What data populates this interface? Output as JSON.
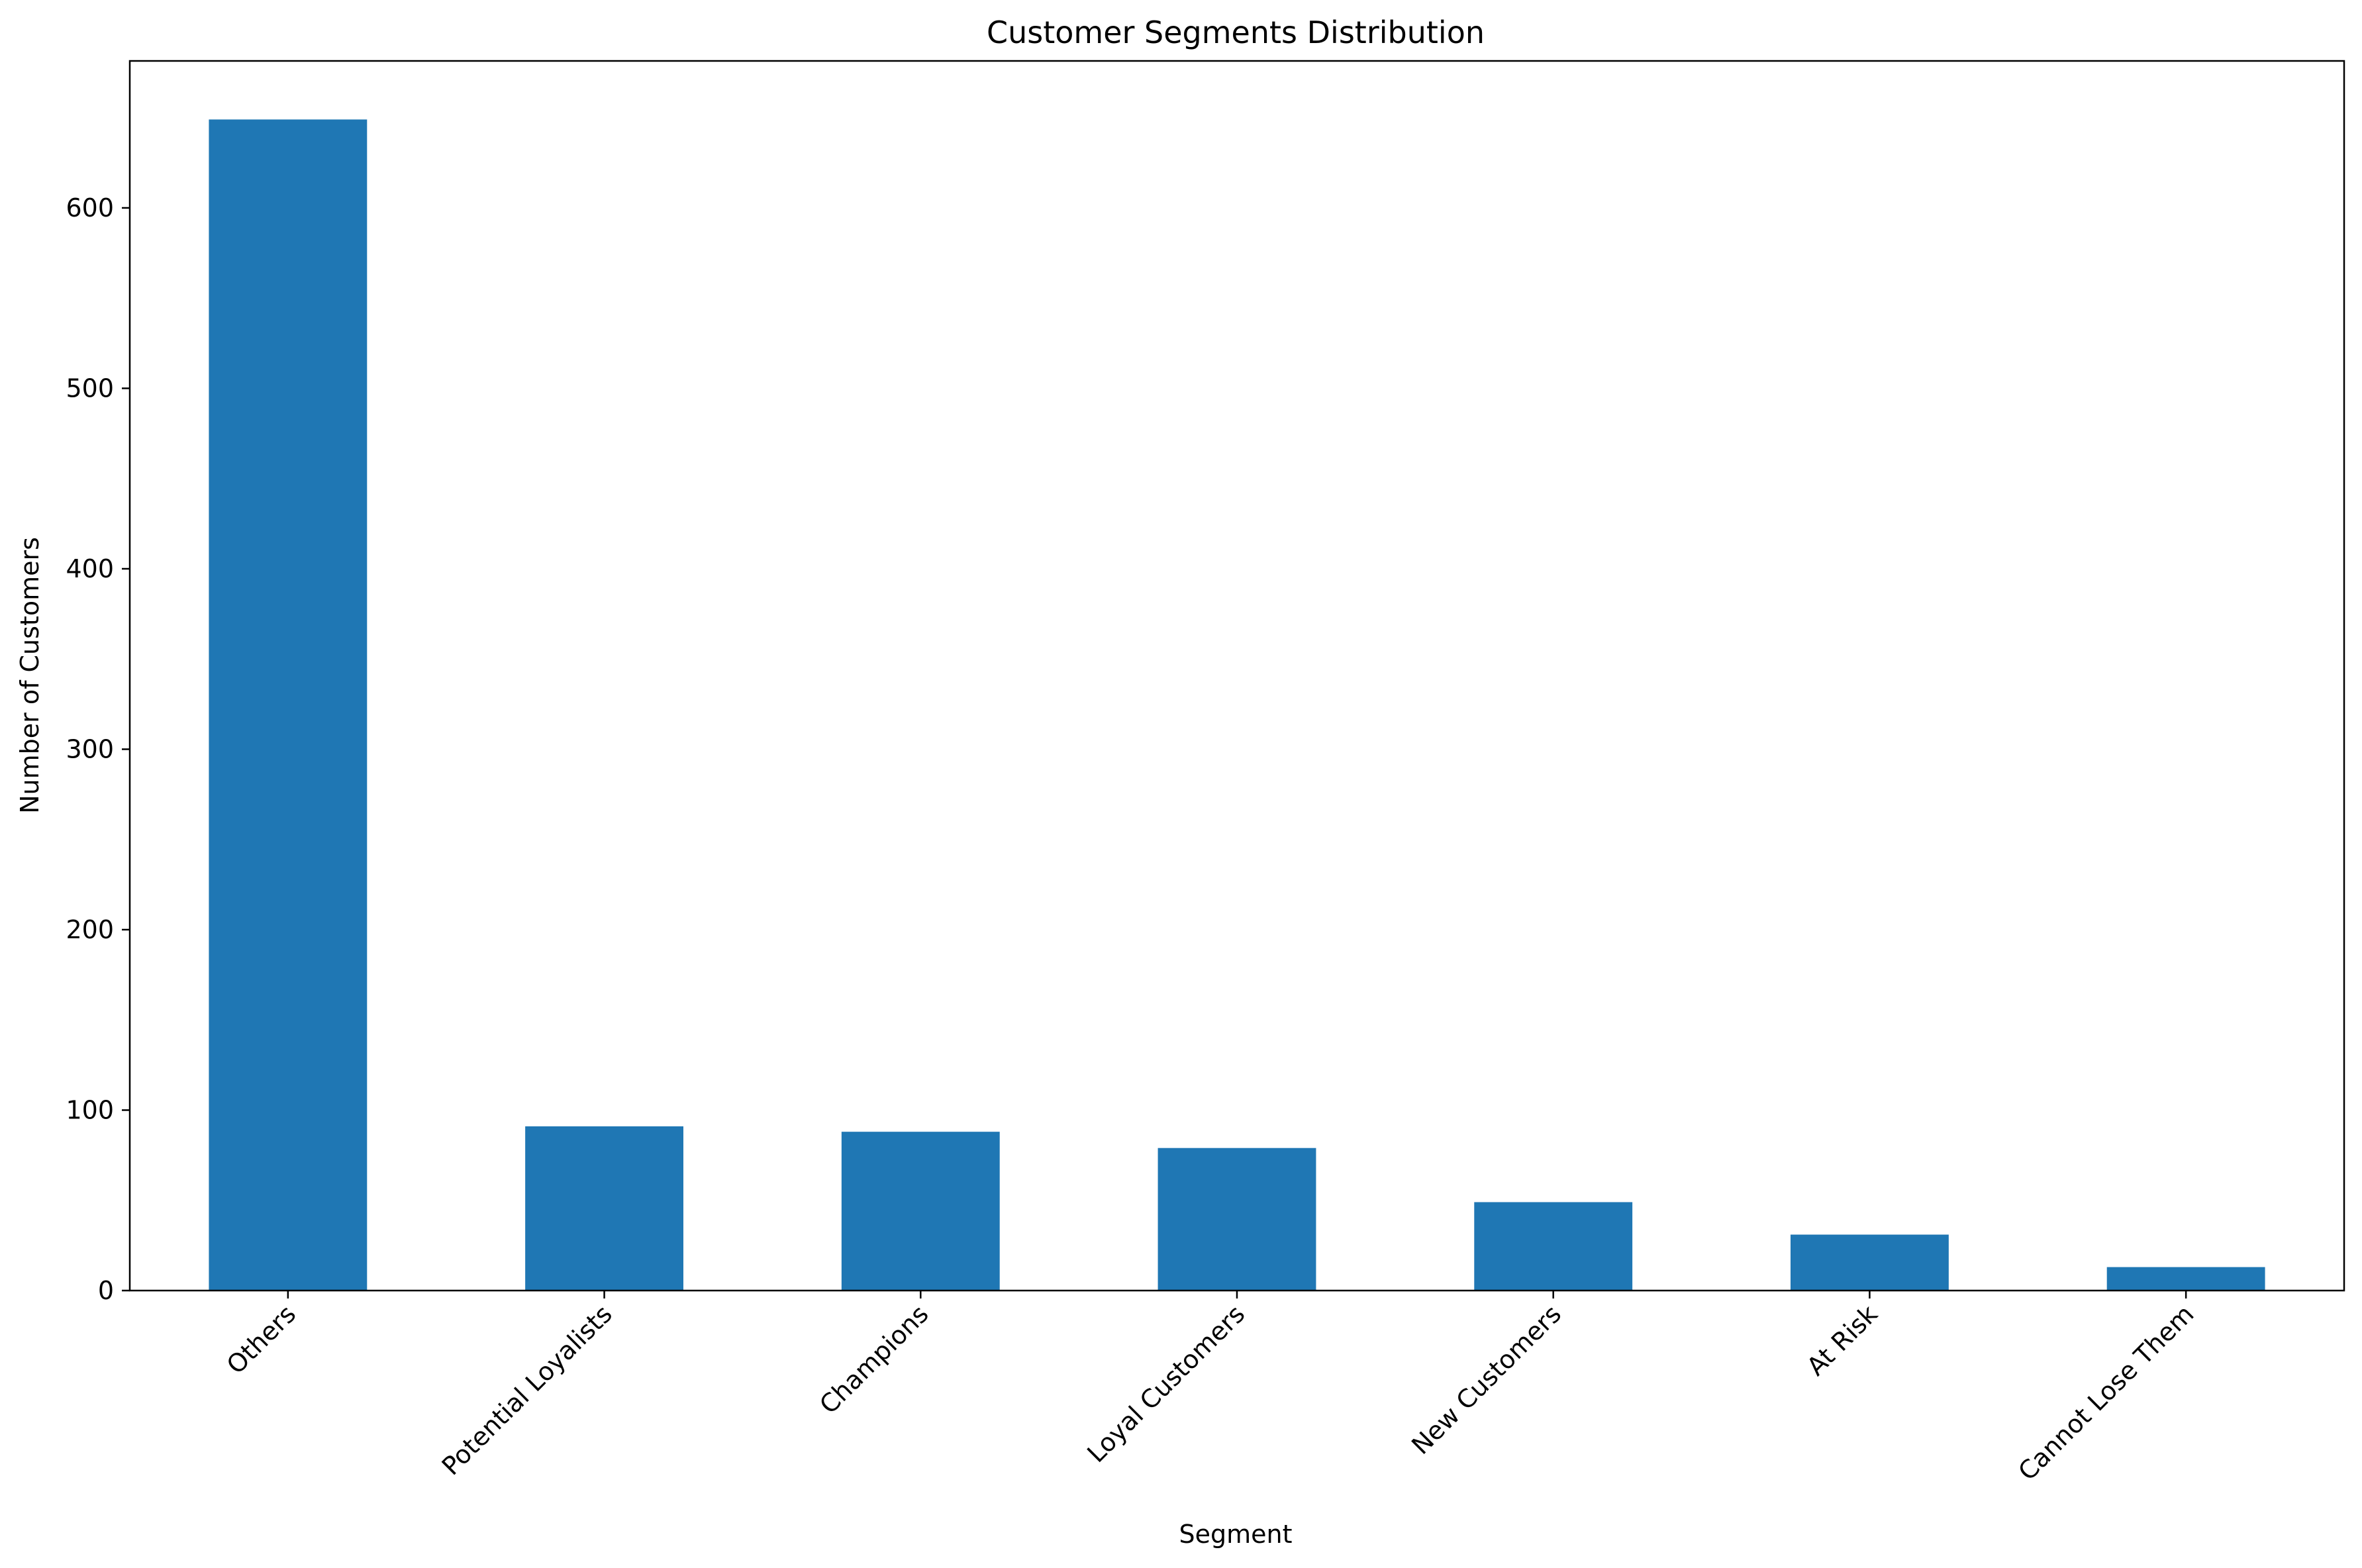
{
  "chart_data": {
    "type": "bar",
    "title": "Customer Segments Distribution",
    "xlabel": "Segment",
    "ylabel": "Number of Customers",
    "categories": [
      "Others",
      "Potential Loyalists",
      "Champions",
      "Loyal Customers",
      "New Customers",
      "At Risk",
      "Cannot Lose Them"
    ],
    "values": [
      649,
      91,
      88,
      79,
      49,
      31,
      13
    ],
    "yticks": [
      0,
      100,
      200,
      300,
      400,
      500,
      600
    ],
    "ylim": [
      0,
      681.45
    ],
    "bar_color": "#1f77b4",
    "xtick_rotation": -45,
    "grid": false,
    "legend": "none"
  }
}
